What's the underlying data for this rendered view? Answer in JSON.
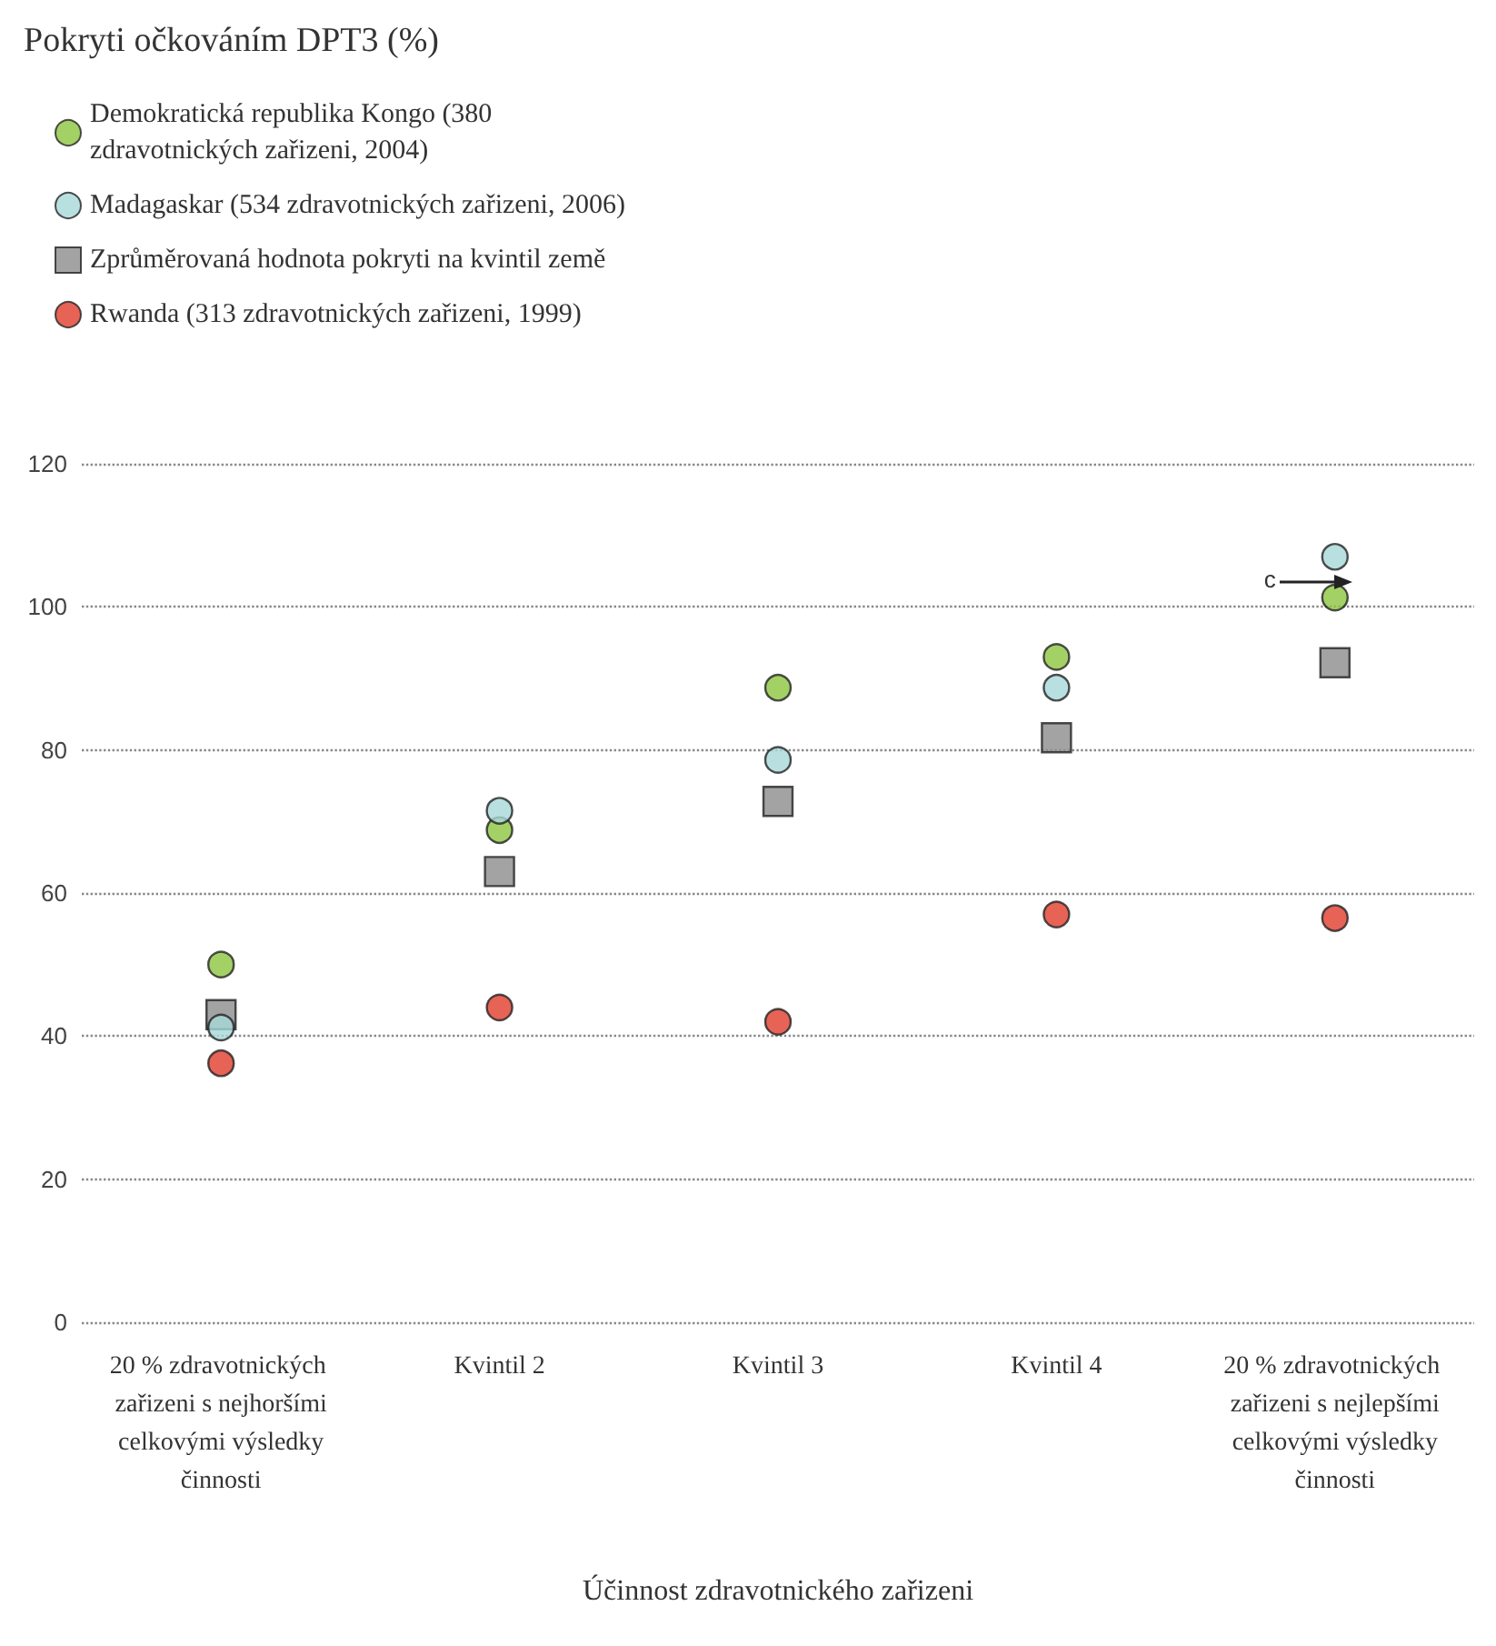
{
  "chart_data": {
    "type": "scatter",
    "title": "Pokryti očkováním DPT3 (%)",
    "xlabel": "Účinnost zdravotnického zařizeni",
    "categories": [
      "20 % zdravotnických zařizeni s nejhoršími celkovými výsledky činnosti",
      "Kvintil 2",
      "Kvintil 3",
      "Kvintil 4",
      "20 % zdravotnických zařizeni s nejlepšími celkovými výsledky činnosti"
    ],
    "series": [
      {
        "name": "Demokratická republika Kongo (380 zdravotnických zařizeni, 2004)",
        "color": "#8dc63f",
        "marker": "circle",
        "values": [
          50,
          68.8,
          88.7,
          93,
          101.3
        ]
      },
      {
        "name": "Madagaskar (534 zdravotnických zařizeni, 2006)",
        "color": "#a8d8d8",
        "marker": "circle",
        "values": [
          41.2,
          71.5,
          78.6,
          88.7,
          107
        ]
      },
      {
        "name": "Zprůměrovaná hodnota pokryti na kvintil země",
        "color": "#8c8c8c",
        "marker": "square",
        "values": [
          43,
          63,
          72.8,
          81.7,
          92.2
        ]
      },
      {
        "name": "Rwanda (313 zdravotnických zařizeni, 1999)",
        "color": "#e03c2c",
        "marker": "circle",
        "values": [
          36.2,
          44,
          42,
          57,
          56.5
        ]
      }
    ],
    "annotations": [
      {
        "text": "c",
        "x": "20 % zdravotnických zařizeni s nejlepšími celkovými výsledky činnosti",
        "y": 103.5
      }
    ],
    "ylim": [
      0,
      120
    ],
    "yticks": [
      0,
      20,
      40,
      60,
      80,
      100,
      120
    ],
    "grid": "y",
    "legend": "top left"
  }
}
